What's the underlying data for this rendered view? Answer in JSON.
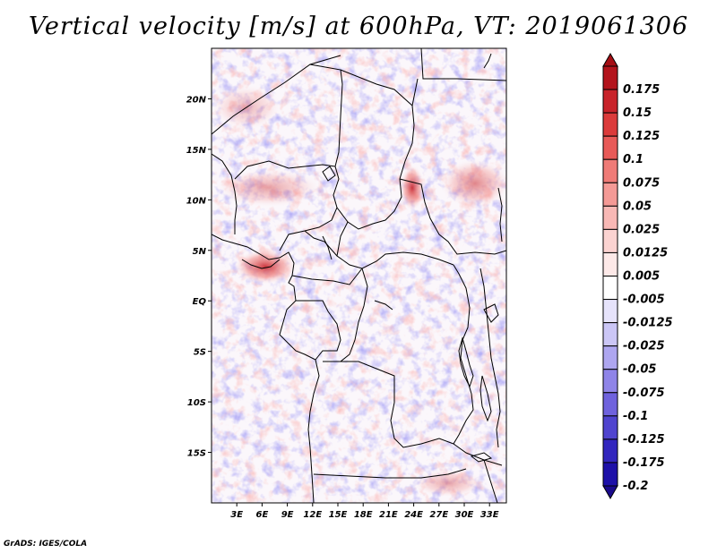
{
  "chart_data": {
    "type": "heatmap",
    "title": "Vertical velocity [m/s] at 600hPa, VT: 2019061306",
    "variable": "Vertical velocity",
    "units": "m/s",
    "level": "600hPa",
    "valid_time": "2019061306",
    "xlim": [
      0,
      35
    ],
    "ylim": [
      -20,
      25
    ],
    "x_ticks": [
      {
        "value": 3,
        "label": "3E"
      },
      {
        "value": 6,
        "label": "6E"
      },
      {
        "value": 9,
        "label": "9E"
      },
      {
        "value": 12,
        "label": "12E"
      },
      {
        "value": 15,
        "label": "15E"
      },
      {
        "value": 18,
        "label": "18E"
      },
      {
        "value": 21,
        "label": "21E"
      },
      {
        "value": 24,
        "label": "24E"
      },
      {
        "value": 27,
        "label": "27E"
      },
      {
        "value": 30,
        "label": "30E"
      },
      {
        "value": 33,
        "label": "33E"
      }
    ],
    "y_ticks": [
      {
        "value": 20,
        "label": "20N"
      },
      {
        "value": 15,
        "label": "15N"
      },
      {
        "value": 10,
        "label": "10N"
      },
      {
        "value": 5,
        "label": "5N"
      },
      {
        "value": 0,
        "label": "EQ"
      },
      {
        "value": -5,
        "label": "5S"
      },
      {
        "value": -10,
        "label": "10S"
      },
      {
        "value": -15,
        "label": "15S"
      }
    ],
    "colorbar": [
      {
        "label": "0.175",
        "color": "#b3141c"
      },
      {
        "label": "0.15",
        "color": "#c8232a"
      },
      {
        "label": "0.125",
        "color": "#db3b3b"
      },
      {
        "label": "0.1",
        "color": "#e85a58"
      },
      {
        "label": "0.075",
        "color": "#ef7b77"
      },
      {
        "label": "0.05",
        "color": "#f49a96"
      },
      {
        "label": "0.025",
        "color": "#f8b8b5"
      },
      {
        "label": "0.0125",
        "color": "#fbd3d1"
      },
      {
        "label": "0.005",
        "color": "#fde9e8"
      },
      {
        "label": "-0.005",
        "color": "#ffffff"
      },
      {
        "label": "-0.0125",
        "color": "#e6e3fb"
      },
      {
        "label": "-0.025",
        "color": "#cbc6f6"
      },
      {
        "label": "-0.05",
        "color": "#aea6f0"
      },
      {
        "label": "-0.075",
        "color": "#8f84e8"
      },
      {
        "label": "-0.1",
        "color": "#6f62dd"
      },
      {
        "label": "-0.125",
        "color": "#5044cf"
      },
      {
        "label": "-0.175",
        "color": "#3226be"
      },
      {
        "label": "-0.2",
        "color": "#1d10a8"
      }
    ],
    "top_triangle_color": "#a50f15",
    "bottom_triangle_color": "#1a0a8c"
  },
  "credit": "GrADS: IGES/COLA"
}
